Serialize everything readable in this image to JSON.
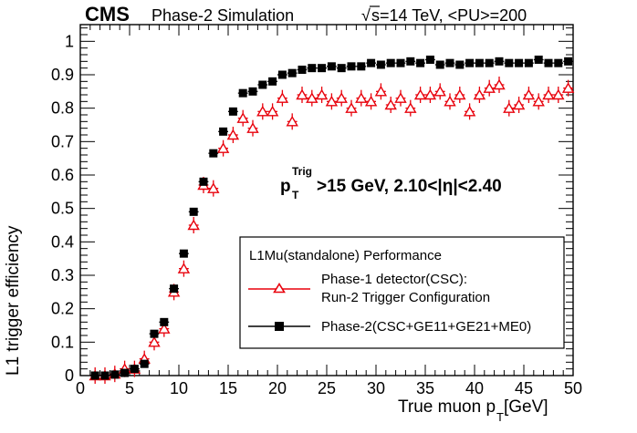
{
  "header": {
    "experiment": "CMS",
    "simulation_label": "Phase-2 Simulation",
    "sqrt": "√",
    "energy_label": "s=14 TeV, <PU>=200"
  },
  "annotation": {
    "p": "p",
    "sub": "T",
    "sup": "Trig",
    "rest": ">15 GeV, 2.10<|η|<2.40"
  },
  "legend": {
    "title": "L1Mu(standalone) Performance",
    "entries": [
      {
        "line1": "Phase-1 detector(CSC):",
        "line2": "Run-2 Trigger Configuration",
        "color": "#e8000b",
        "marker": "open-triangle"
      },
      {
        "line1": "Phase-2(CSC+GE11+GE21+ME0)",
        "line2": "",
        "color": "#000000",
        "marker": "filled-square"
      }
    ]
  },
  "chart_data": {
    "type": "scatter",
    "title": "",
    "xlabel": "True muon p",
    "xlabel_sub": "T",
    "xlabel_unit": " [GeV]",
    "ylabel": "L1 trigger efficiency",
    "xlim": [
      0,
      50
    ],
    "ylim": [
      0,
      1.05
    ],
    "xticks": [
      0,
      5,
      10,
      15,
      20,
      25,
      30,
      35,
      40,
      45,
      50
    ],
    "yticks": [
      0,
      0.1,
      0.2,
      0.3,
      0.4,
      0.5,
      0.6,
      0.7,
      0.8,
      0.9,
      1
    ],
    "ytick_labels": [
      "0",
      "0.1",
      "0.2",
      "0.3",
      "0.4",
      "0.5",
      "0.6",
      "0.7",
      "0.8",
      "0.9",
      "1"
    ],
    "grid": false,
    "legend_position": "bottom-right",
    "x": [
      1.5,
      2.5,
      3.5,
      4.5,
      5.5,
      6.5,
      7.5,
      8.5,
      9.5,
      10.5,
      11.5,
      12.5,
      13.5,
      14.5,
      15.5,
      16.5,
      17.5,
      18.5,
      19.5,
      20.5,
      21.5,
      22.5,
      23.5,
      24.5,
      25.5,
      26.5,
      27.5,
      28.5,
      29.5,
      30.5,
      31.5,
      32.5,
      33.5,
      34.5,
      35.5,
      36.5,
      37.5,
      38.5,
      39.5,
      40.5,
      41.5,
      42.5,
      43.5,
      44.5,
      45.5,
      46.5,
      47.5,
      48.5,
      49.5
    ],
    "series": [
      {
        "name": "Phase-1 detector(CSC): Run-2 Trigger Configuration",
        "color": "#e8000b",
        "marker": "open-triangle",
        "values": [
          0.0,
          0.0,
          0.005,
          0.02,
          0.02,
          0.05,
          0.1,
          0.14,
          0.25,
          0.32,
          0.45,
          0.57,
          0.56,
          0.68,
          0.72,
          0.77,
          0.74,
          0.79,
          0.79,
          0.83,
          0.76,
          0.84,
          0.83,
          0.84,
          0.82,
          0.83,
          0.8,
          0.83,
          0.82,
          0.85,
          0.81,
          0.83,
          0.8,
          0.84,
          0.84,
          0.85,
          0.82,
          0.84,
          0.79,
          0.84,
          0.86,
          0.87,
          0.8,
          0.81,
          0.84,
          0.82,
          0.84,
          0.84,
          0.86
        ]
      },
      {
        "name": "Phase-2(CSC+GE11+GE21+ME0)",
        "color": "#000000",
        "marker": "filled-square",
        "values": [
          0.0,
          0.0,
          0.003,
          0.008,
          0.02,
          0.035,
          0.125,
          0.16,
          0.26,
          0.365,
          0.49,
          0.58,
          0.665,
          0.73,
          0.79,
          0.845,
          0.85,
          0.87,
          0.88,
          0.9,
          0.905,
          0.915,
          0.92,
          0.92,
          0.925,
          0.92,
          0.925,
          0.925,
          0.935,
          0.93,
          0.935,
          0.935,
          0.94,
          0.935,
          0.945,
          0.93,
          0.935,
          0.93,
          0.935,
          0.935,
          0.935,
          0.94,
          0.935,
          0.935,
          0.935,
          0.945,
          0.935,
          0.935,
          0.94
        ]
      }
    ]
  }
}
